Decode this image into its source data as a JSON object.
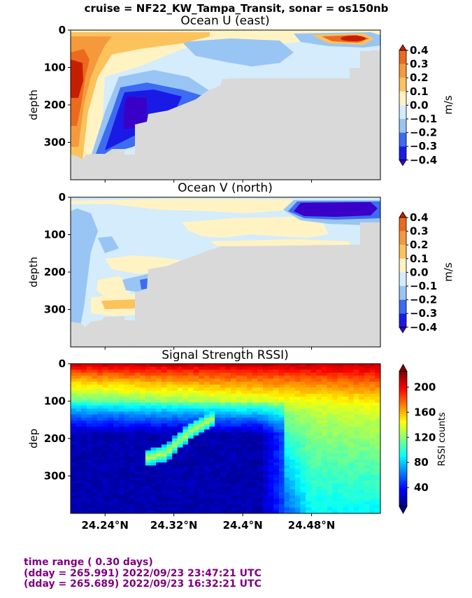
{
  "suptitle": "cruise = NF22_KW_Tampa_Transit,  sonar = os150nb",
  "chart_data": [
    {
      "type": "heatmap",
      "title": "Ocean U (east)",
      "ylabel": "depth",
      "yticks": [
        0,
        100,
        200,
        300
      ],
      "ylim": [
        400,
        0
      ],
      "xlim": [
        24.2,
        24.56
      ],
      "colorbar": {
        "label": "m/s",
        "ticks": [
          "0.4",
          "0.3",
          "0.2",
          "0.1",
          "0.0",
          "−0.1",
          "−0.2",
          "−0.3",
          "−0.4"
        ]
      },
      "colors": [
        "#3b00c8",
        "#1a1ae6",
        "#3d6cf2",
        "#99c5f5",
        "#d4ecfb",
        "#fff3c4",
        "#fcc25c",
        "#f49a3c",
        "#ec6a1e",
        "#c81e00"
      ],
      "features": [
        {
          "feature": "western eastward jet",
          "lat_range": [
            24.2,
            24.222
          ],
          "depth_range": [
            10,
            340
          ],
          "value": 0.35
        },
        {
          "feature": "southwestward core",
          "lat_range": [
            24.26,
            24.3
          ],
          "depth_range": [
            150,
            260
          ],
          "value": -0.4
        },
        {
          "feature": "surface eastward jet",
          "lat_range": [
            24.49,
            24.55
          ],
          "depth_range": [
            10,
            40
          ],
          "value": 0.35
        }
      ],
      "bottom_depth_profile": {
        "lat": [
          24.2,
          24.215,
          24.223,
          24.25,
          24.26,
          24.273,
          24.273,
          24.28,
          24.28,
          24.3,
          24.3,
          24.32,
          24.36,
          24.38,
          24.4,
          24.44,
          24.53,
          24.53,
          24.56
        ],
        "depth": [
          330,
          335,
          345,
          340,
          330,
          330,
          340,
          340,
          258,
          240,
          225,
          205,
          178,
          155,
          140,
          130,
          130,
          55,
          55
        ]
      }
    },
    {
      "type": "heatmap",
      "title": "Ocean V (north)",
      "ylabel": "depth",
      "yticks": [
        0,
        100,
        200,
        300
      ],
      "ylim": [
        400,
        0
      ],
      "xlim": [
        24.2,
        24.56
      ],
      "colorbar": {
        "label": "m/s",
        "ticks": [
          "0.4",
          "0.3",
          "0.2",
          "0.1",
          "0.0",
          "−0.1",
          "−0.2",
          "−0.3",
          "−0.4"
        ]
      },
      "colors": [
        "#3b00c8",
        "#1a1ae6",
        "#3d6cf2",
        "#99c5f5",
        "#d4ecfb",
        "#fff3c4",
        "#fcc25c",
        "#f49a3c",
        "#ec6a1e",
        "#c81e00"
      ],
      "features": [
        {
          "feature": "surface southward core",
          "lat_range": [
            24.46,
            24.535
          ],
          "depth_range": [
            5,
            55
          ],
          "value": -0.4
        },
        {
          "feature": "western southward band",
          "lat_range": [
            24.2,
            24.225
          ],
          "depth_range": [
            20,
            330
          ],
          "value": -0.15
        },
        {
          "feature": "deep northward patch",
          "lat_range": [
            24.235,
            24.275
          ],
          "depth_range": [
            270,
            300
          ],
          "value": 0.15
        }
      ],
      "bottom_depth_profile": {
        "lat": [
          24.2,
          24.215,
          24.223,
          24.25,
          24.26,
          24.273,
          24.273,
          24.28,
          24.28,
          24.3,
          24.3,
          24.32,
          24.36,
          24.38,
          24.4,
          24.44,
          24.53,
          24.53,
          24.56
        ],
        "depth": [
          330,
          340,
          345,
          335,
          325,
          325,
          335,
          335,
          252,
          238,
          225,
          205,
          175,
          150,
          135,
          125,
          125,
          60,
          60
        ]
      }
    },
    {
      "type": "heatmap",
      "title": "Signal Strength RSSI)",
      "ylabel": "dep",
      "yticks": [
        0,
        100,
        200,
        300
      ],
      "ylim": [
        400,
        0
      ],
      "xlim": [
        24.2,
        24.56
      ],
      "xticks": [
        "24.24°N",
        "24.32°N",
        "24.4°N",
        "24.48°N"
      ],
      "xtick_values": [
        24.24,
        24.32,
        24.4,
        24.48
      ],
      "colorbar": {
        "label": "RSSI counts",
        "ticks": [
          "200",
          "160",
          "120",
          "80",
          "40"
        ],
        "range": [
          10,
          225
        ]
      },
      "rssi_levels": {
        "surface": 215,
        "100m_west": 110,
        "100m_east": 150,
        "deep_west": 20,
        "deep_east": 90,
        "scattering_layer_peak": 130
      },
      "scattering_layer": {
        "lat": [
          24.285,
          24.31,
          24.34,
          24.37
        ],
        "depth": [
          255,
          240,
          180,
          140
        ]
      }
    }
  ],
  "footer": {
    "line1": "time range ( 0.30 days)",
    "line2": "(dday = 265.991) 2022/09/23 23:47:21 UTC",
    "line3": "(dday = 265.689) 2022/09/23 16:32:21 UTC"
  }
}
